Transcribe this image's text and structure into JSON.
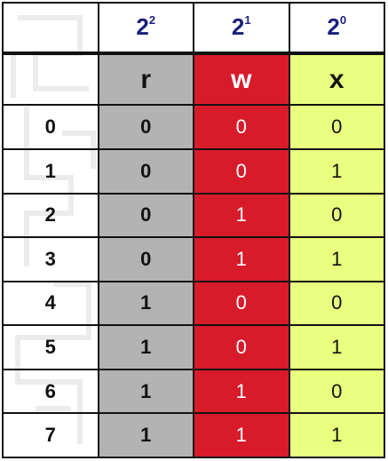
{
  "powers": [
    {
      "base": "2",
      "exp": "2"
    },
    {
      "base": "2",
      "exp": "1"
    },
    {
      "base": "2",
      "exp": "0"
    }
  ],
  "headers": {
    "r": "r",
    "w": "w",
    "x": "x"
  },
  "rows": [
    {
      "n": "0",
      "r": "0",
      "w": "0",
      "x": "0"
    },
    {
      "n": "1",
      "r": "0",
      "w": "0",
      "x": "1"
    },
    {
      "n": "2",
      "r": "0",
      "w": "1",
      "x": "0"
    },
    {
      "n": "3",
      "r": "0",
      "w": "1",
      "x": "1"
    },
    {
      "n": "4",
      "r": "1",
      "w": "0",
      "x": "0"
    },
    {
      "n": "5",
      "r": "1",
      "w": "0",
      "x": "1"
    },
    {
      "n": "6",
      "r": "1",
      "w": "1",
      "x": "0"
    },
    {
      "n": "7",
      "r": "1",
      "w": "1",
      "x": "1"
    }
  ],
  "colors": {
    "r_column": "#b3b3b3",
    "w_column": "#d81b2b",
    "x_column": "#eaff80",
    "power_text": "#1a1f7a"
  }
}
